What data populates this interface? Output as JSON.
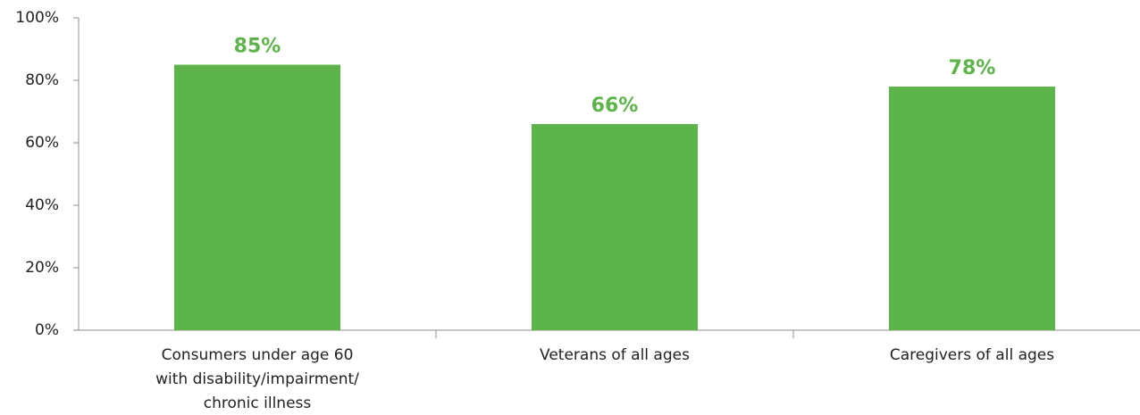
{
  "chart_data": {
    "type": "bar",
    "categories": [
      [
        "Consumers under age 60",
        "with disability/impairment/",
        "chronic illness"
      ],
      [
        "Veterans of all ages"
      ],
      [
        "Caregivers of all ages"
      ]
    ],
    "values": [
      85,
      66,
      78
    ],
    "data_labels": [
      "85%",
      "66%",
      "78%"
    ],
    "y_ticks": [
      "0%",
      "20%",
      "40%",
      "60%",
      "80%",
      "100%"
    ],
    "ylim": [
      0,
      100
    ],
    "grid": false,
    "legend": "none",
    "bar_color": "#5db44a",
    "label_color": "#5db44a",
    "title": "",
    "xlabel": "",
    "ylabel": ""
  }
}
